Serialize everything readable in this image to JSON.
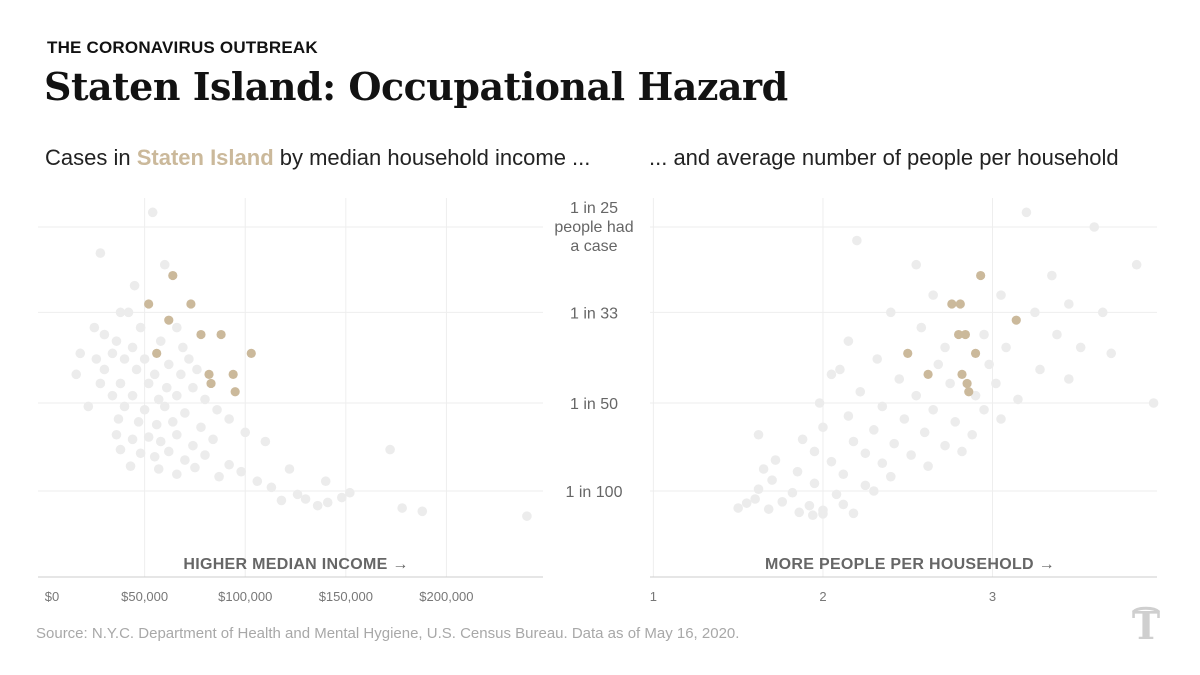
{
  "header": {
    "kicker": "THE CORONAVIRUS OUTBREAK",
    "title": "Staten Island: Occupational Hazard",
    "subtitle_left_pre": "Cases in ",
    "subtitle_left_highlight": "Staten Island",
    "subtitle_left_post": " by median household income ...",
    "subtitle_right": "... and average number of people per household"
  },
  "source": "Source: N.Y.C. Department of Health and Mental Hygiene, U.S. Census Bureau. Data as of May 16, 2020.",
  "logo": "nyt-logo",
  "colors": {
    "highlight": "#cbb99b",
    "background_dots": "#ececec",
    "grid": "#eeeeee",
    "axis": "#cccccc"
  },
  "chart_data": [
    {
      "type": "scatter",
      "title": "Cases in Staten Island by median household income ...",
      "xlabel": "HIGHER MEDIAN INCOME →",
      "ylabel": "",
      "y_scale": "reciprocal (1 in N people had a case)",
      "y_ticks": [
        {
          "value": 25,
          "label": "1 in 25 people had a case"
        },
        {
          "value": 33,
          "label": "1 in 33"
        },
        {
          "value": 50,
          "label": "1 in 50"
        },
        {
          "value": 100,
          "label": "1 in 100"
        }
      ],
      "x_ticks": [
        {
          "value": 0,
          "label": "$0"
        },
        {
          "value": 50000,
          "label": "$50,000"
        },
        {
          "value": 100000,
          "label": "$100,000"
        },
        {
          "value": 150000,
          "label": "$150,000"
        },
        {
          "value": 200000,
          "label": "$200,000"
        }
      ],
      "xlim": [
        -3000,
        248000
      ],
      "ylim": [
        22,
        150
      ],
      "grid": true,
      "series": [
        {
          "name": "Staten Island",
          "color": "#cbb99b",
          "points": [
            {
              "x": 64000,
              "y": 29
            },
            {
              "x": 52000,
              "y": 32
            },
            {
              "x": 73000,
              "y": 32
            },
            {
              "x": 62000,
              "y": 34
            },
            {
              "x": 78000,
              "y": 36
            },
            {
              "x": 88000,
              "y": 36
            },
            {
              "x": 56000,
              "y": 39
            },
            {
              "x": 103000,
              "y": 39
            },
            {
              "x": 82000,
              "y": 43
            },
            {
              "x": 94000,
              "y": 43
            },
            {
              "x": 83000,
              "y": 45
            },
            {
              "x": 95000,
              "y": 47
            }
          ]
        },
        {
          "color": "#ececec",
          "points": [
            {
              "x": 54000,
              "y": 24
            },
            {
              "x": 28000,
              "y": 27
            },
            {
              "x": 60000,
              "y": 28
            },
            {
              "x": 45000,
              "y": 30
            },
            {
              "x": 38000,
              "y": 33
            },
            {
              "x": 42000,
              "y": 33
            },
            {
              "x": 25000,
              "y": 35
            },
            {
              "x": 30000,
              "y": 36
            },
            {
              "x": 48000,
              "y": 35
            },
            {
              "x": 66000,
              "y": 35
            },
            {
              "x": 36000,
              "y": 37
            },
            {
              "x": 44000,
              "y": 38
            },
            {
              "x": 58000,
              "y": 37
            },
            {
              "x": 69000,
              "y": 38
            },
            {
              "x": 34000,
              "y": 39
            },
            {
              "x": 26000,
              "y": 40
            },
            {
              "x": 40000,
              "y": 40
            },
            {
              "x": 50000,
              "y": 40
            },
            {
              "x": 62000,
              "y": 41
            },
            {
              "x": 72000,
              "y": 40
            },
            {
              "x": 30000,
              "y": 42
            },
            {
              "x": 46000,
              "y": 42
            },
            {
              "x": 55000,
              "y": 43
            },
            {
              "x": 68000,
              "y": 43
            },
            {
              "x": 76000,
              "y": 42
            },
            {
              "x": 28000,
              "y": 45
            },
            {
              "x": 38000,
              "y": 45
            },
            {
              "x": 52000,
              "y": 45
            },
            {
              "x": 61000,
              "y": 46
            },
            {
              "x": 74000,
              "y": 46
            },
            {
              "x": 34000,
              "y": 48
            },
            {
              "x": 44000,
              "y": 48
            },
            {
              "x": 57000,
              "y": 49
            },
            {
              "x": 66000,
              "y": 48
            },
            {
              "x": 80000,
              "y": 49
            },
            {
              "x": 40000,
              "y": 51
            },
            {
              "x": 50000,
              "y": 52
            },
            {
              "x": 60000,
              "y": 51
            },
            {
              "x": 70000,
              "y": 53
            },
            {
              "x": 86000,
              "y": 52
            },
            {
              "x": 37000,
              "y": 55
            },
            {
              "x": 47000,
              "y": 56
            },
            {
              "x": 56000,
              "y": 57
            },
            {
              "x": 64000,
              "y": 56
            },
            {
              "x": 78000,
              "y": 58
            },
            {
              "x": 92000,
              "y": 55
            },
            {
              "x": 36000,
              "y": 61
            },
            {
              "x": 44000,
              "y": 63
            },
            {
              "x": 52000,
              "y": 62
            },
            {
              "x": 58000,
              "y": 64
            },
            {
              "x": 66000,
              "y": 61
            },
            {
              "x": 74000,
              "y": 66
            },
            {
              "x": 84000,
              "y": 63
            },
            {
              "x": 100000,
              "y": 60
            },
            {
              "x": 38000,
              "y": 68
            },
            {
              "x": 48000,
              "y": 70
            },
            {
              "x": 55000,
              "y": 72
            },
            {
              "x": 62000,
              "y": 69
            },
            {
              "x": 70000,
              "y": 74
            },
            {
              "x": 80000,
              "y": 71
            },
            {
              "x": 92000,
              "y": 77
            },
            {
              "x": 110000,
              "y": 64
            },
            {
              "x": 43000,
              "y": 78
            },
            {
              "x": 57000,
              "y": 80
            },
            {
              "x": 66000,
              "y": 84
            },
            {
              "x": 75000,
              "y": 79
            },
            {
              "x": 87000,
              "y": 86
            },
            {
              "x": 98000,
              "y": 82
            },
            {
              "x": 106000,
              "y": 90
            },
            {
              "x": 122000,
              "y": 80
            },
            {
              "x": 113000,
              "y": 96
            },
            {
              "x": 126000,
              "y": 104
            },
            {
              "x": 130000,
              "y": 110
            },
            {
              "x": 141000,
              "y": 115
            },
            {
              "x": 148000,
              "y": 108
            },
            {
              "x": 136000,
              "y": 120
            },
            {
              "x": 118000,
              "y": 112
            },
            {
              "x": 152000,
              "y": 102
            },
            {
              "x": 178000,
              "y": 124
            },
            {
              "x": 188000,
              "y": 130
            },
            {
              "x": 140000,
              "y": 90
            },
            {
              "x": 172000,
              "y": 68
            },
            {
              "x": 22000,
              "y": 51
            },
            {
              "x": 18000,
              "y": 39
            },
            {
              "x": 16000,
              "y": 43
            },
            {
              "x": 240000,
              "y": 140
            }
          ]
        }
      ]
    },
    {
      "type": "scatter",
      "title": "... and average number of people per household",
      "xlabel": "MORE PEOPLE PER HOUSEHOLD →",
      "ylabel": "",
      "y_scale": "reciprocal (1 in N people had a case)",
      "x_ticks": [
        {
          "value": 1,
          "label": "1"
        },
        {
          "value": 2,
          "label": "2"
        },
        {
          "value": 3,
          "label": "3"
        }
      ],
      "xlim": [
        0.98,
        3.97
      ],
      "ylim": [
        22,
        150
      ],
      "grid": true,
      "series": [
        {
          "name": "Staten Island",
          "color": "#cbb99b",
          "points": [
            {
              "x": 2.93,
              "y": 29
            },
            {
              "x": 2.76,
              "y": 32
            },
            {
              "x": 2.81,
              "y": 32
            },
            {
              "x": 3.14,
              "y": 34
            },
            {
              "x": 2.84,
              "y": 36
            },
            {
              "x": 2.8,
              "y": 36
            },
            {
              "x": 2.5,
              "y": 39
            },
            {
              "x": 2.9,
              "y": 39
            },
            {
              "x": 2.62,
              "y": 43
            },
            {
              "x": 2.82,
              "y": 43
            },
            {
              "x": 2.85,
              "y": 45
            },
            {
              "x": 2.86,
              "y": 47
            }
          ]
        },
        {
          "color": "#ececec",
          "points": [
            {
              "x": 3.2,
              "y": 24
            },
            {
              "x": 2.2,
              "y": 26
            },
            {
              "x": 2.55,
              "y": 28
            },
            {
              "x": 3.35,
              "y": 29
            },
            {
              "x": 3.85,
              "y": 28
            },
            {
              "x": 2.65,
              "y": 31
            },
            {
              "x": 3.05,
              "y": 31
            },
            {
              "x": 3.45,
              "y": 32
            },
            {
              "x": 2.4,
              "y": 33
            },
            {
              "x": 3.25,
              "y": 33
            },
            {
              "x": 3.65,
              "y": 33
            },
            {
              "x": 2.58,
              "y": 35
            },
            {
              "x": 2.95,
              "y": 36
            },
            {
              "x": 3.38,
              "y": 36
            },
            {
              "x": 2.15,
              "y": 37
            },
            {
              "x": 2.72,
              "y": 38
            },
            {
              "x": 3.08,
              "y": 38
            },
            {
              "x": 3.52,
              "y": 38
            },
            {
              "x": 3.7,
              "y": 39
            },
            {
              "x": 2.32,
              "y": 40
            },
            {
              "x": 2.68,
              "y": 41
            },
            {
              "x": 2.98,
              "y": 41
            },
            {
              "x": 3.28,
              "y": 42
            },
            {
              "x": 2.05,
              "y": 43
            },
            {
              "x": 2.45,
              "y": 44
            },
            {
              "x": 2.75,
              "y": 45
            },
            {
              "x": 3.02,
              "y": 45
            },
            {
              "x": 3.45,
              "y": 44
            },
            {
              "x": 2.22,
              "y": 47
            },
            {
              "x": 2.55,
              "y": 48
            },
            {
              "x": 2.9,
              "y": 48
            },
            {
              "x": 3.15,
              "y": 49
            },
            {
              "x": 1.98,
              "y": 50
            },
            {
              "x": 2.35,
              "y": 51
            },
            {
              "x": 2.65,
              "y": 52
            },
            {
              "x": 2.95,
              "y": 52
            },
            {
              "x": 3.95,
              "y": 50
            },
            {
              "x": 2.15,
              "y": 54
            },
            {
              "x": 2.48,
              "y": 55
            },
            {
              "x": 2.78,
              "y": 56
            },
            {
              "x": 3.05,
              "y": 55
            },
            {
              "x": 2.0,
              "y": 58
            },
            {
              "x": 2.3,
              "y": 59
            },
            {
              "x": 2.6,
              "y": 60
            },
            {
              "x": 2.88,
              "y": 61
            },
            {
              "x": 1.88,
              "y": 63
            },
            {
              "x": 2.18,
              "y": 64
            },
            {
              "x": 2.42,
              "y": 65
            },
            {
              "x": 2.72,
              "y": 66
            },
            {
              "x": 1.62,
              "y": 61
            },
            {
              "x": 1.95,
              "y": 69
            },
            {
              "x": 2.25,
              "y": 70
            },
            {
              "x": 2.52,
              "y": 71
            },
            {
              "x": 2.82,
              "y": 69
            },
            {
              "x": 1.72,
              "y": 74
            },
            {
              "x": 2.05,
              "y": 75
            },
            {
              "x": 2.35,
              "y": 76
            },
            {
              "x": 2.62,
              "y": 78
            },
            {
              "x": 1.65,
              "y": 80
            },
            {
              "x": 1.85,
              "y": 82
            },
            {
              "x": 2.12,
              "y": 84
            },
            {
              "x": 2.4,
              "y": 86
            },
            {
              "x": 1.7,
              "y": 89
            },
            {
              "x": 1.95,
              "y": 92
            },
            {
              "x": 2.25,
              "y": 94
            },
            {
              "x": 1.62,
              "y": 98
            },
            {
              "x": 1.82,
              "y": 102
            },
            {
              "x": 2.08,
              "y": 104
            },
            {
              "x": 2.3,
              "y": 100
            },
            {
              "x": 1.6,
              "y": 110
            },
            {
              "x": 1.76,
              "y": 114
            },
            {
              "x": 1.92,
              "y": 120
            },
            {
              "x": 2.12,
              "y": 118
            },
            {
              "x": 1.5,
              "y": 124
            },
            {
              "x": 1.68,
              "y": 126
            },
            {
              "x": 1.86,
              "y": 132
            },
            {
              "x": 2.0,
              "y": 128
            },
            {
              "x": 1.55,
              "y": 116
            },
            {
              "x": 2.18,
              "y": 134
            },
            {
              "x": 1.94,
              "y": 138
            },
            {
              "x": 3.6,
              "y": 25
            },
            {
              "x": 2.1,
              "y": 42
            },
            {
              "x": 2.0,
              "y": 135
            }
          ]
        }
      ]
    }
  ]
}
